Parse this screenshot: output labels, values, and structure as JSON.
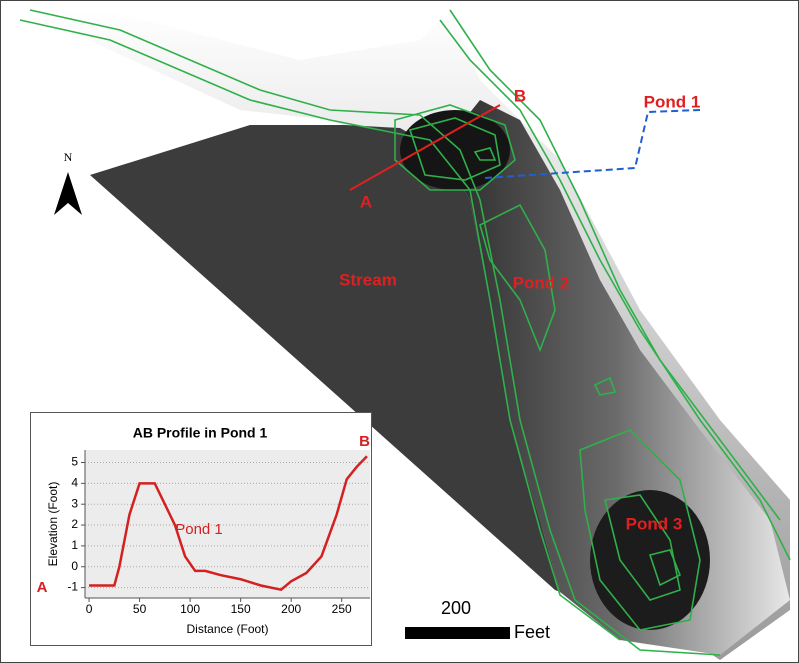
{
  "map": {
    "north": "N",
    "point_b": "B",
    "point_a": "A",
    "pond_1": "Pond 1",
    "stream": "Stream",
    "pond_2": "Pond 2",
    "pond_3": "Pond 3"
  },
  "scale_bar": {
    "distance": 200,
    "unit": "Feet"
  },
  "chart_data": {
    "type": "line",
    "title": "AB Profile in Pond 1",
    "x_label": "Distance (Foot)",
    "y_label": "Elevation (Foot)",
    "x": [
      0,
      25,
      30,
      40,
      50,
      65,
      75,
      85,
      95,
      105,
      115,
      130,
      150,
      170,
      190,
      200,
      215,
      230,
      245,
      255,
      265,
      275
    ],
    "values": [
      -0.9,
      -0.9,
      0,
      2.5,
      4,
      4,
      3,
      2,
      0.5,
      -0.2,
      -0.2,
      -0.4,
      -0.6,
      -0.9,
      -1.1,
      -0.7,
      -0.3,
      0.5,
      2.5,
      4.2,
      4.8,
      5.3
    ],
    "color": "#d42020",
    "xlim": [
      -4,
      278
    ],
    "ylim": [
      -1.5,
      5.6
    ],
    "xticks": [
      0,
      50,
      100,
      150,
      200,
      250
    ],
    "yticks": [
      -1,
      0,
      1,
      2,
      3,
      4,
      5
    ],
    "grid": true,
    "annotations": [
      "Pond 1",
      "A",
      "B"
    ]
  }
}
